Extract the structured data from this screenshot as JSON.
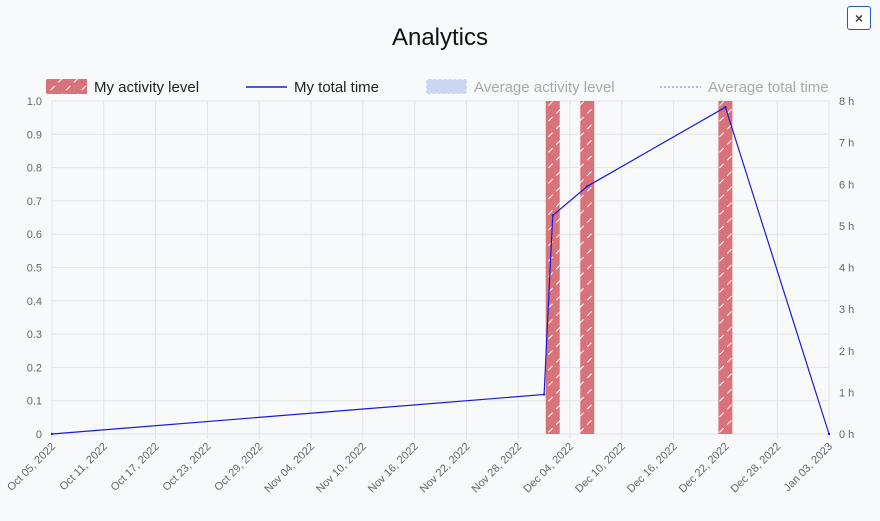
{
  "window": {
    "title": "Analytics",
    "close_icon": "close-icon",
    "close_glyph": "×"
  },
  "colors": {
    "activity_bar": "#d9737a",
    "activity_hatch": "#ffffff",
    "total_time_line": "#1a1adb",
    "average_activity": "#c9d7f2",
    "average_time": "#9aa9d8",
    "grid": "#e4e4e4",
    "legend_hidden_text": "#a9a9a9"
  },
  "legend": [
    {
      "label": "My activity level",
      "kind": "hatched-box",
      "hidden": false
    },
    {
      "label": "My total time",
      "kind": "line",
      "hidden": false
    },
    {
      "label": "Average activity level",
      "kind": "dotted-box",
      "hidden": true
    },
    {
      "label": "Average total time",
      "kind": "dotted-line",
      "hidden": true
    }
  ],
  "chart_data": {
    "type": "bar",
    "title": "Analytics",
    "x_tick_labels": [
      "Oct 05, 2022",
      "Oct 11, 2022",
      "Oct 17, 2022",
      "Oct 23, 2022",
      "Oct 29, 2022",
      "Nov 04, 2022",
      "Nov 10, 2022",
      "Nov 16, 2022",
      "Nov 22, 2022",
      "Nov 28, 2022",
      "Dec 04, 2022",
      "Dec 10, 2022",
      "Dec 16, 2022",
      "Dec 22, 2022",
      "Dec 28, 2022",
      "Jan 03, 2023"
    ],
    "xlim": [
      "2022-10-05",
      "2023-01-03"
    ],
    "y_left": {
      "ticks": [
        "0",
        "0.1",
        "0.2",
        "0.3",
        "0.4",
        "0.5",
        "0.6",
        "0.7",
        "0.8",
        "0.9",
        "1.0"
      ],
      "ylim": [
        0,
        1
      ]
    },
    "y_right": {
      "ticks": [
        "0 h",
        "1 h",
        "2 h",
        "3 h",
        "4 h",
        "5 h",
        "6 h",
        "7 h",
        "8 h"
      ],
      "ylim": [
        0,
        8
      ],
      "unit": "h"
    },
    "grid": true,
    "legend_position": "top",
    "series": [
      {
        "name": "My activity level",
        "type": "bar",
        "axis": "left",
        "points": [
          {
            "x": "2022-12-02",
            "y": 1.0
          },
          {
            "x": "2022-12-06",
            "y": 1.0
          },
          {
            "x": "2022-12-22",
            "y": 1.0
          }
        ]
      },
      {
        "name": "My total time",
        "type": "line",
        "axis": "right",
        "points": [
          {
            "x": "2022-10-05",
            "y": 0
          },
          {
            "x": "2022-12-01",
            "y": 0.95
          },
          {
            "x": "2022-12-02",
            "y": 5.25
          },
          {
            "x": "2022-12-06",
            "y": 5.95
          },
          {
            "x": "2022-12-22",
            "y": 7.85
          },
          {
            "x": "2023-01-03",
            "y": 0
          }
        ]
      },
      {
        "name": "Average activity level",
        "type": "bar",
        "axis": "left",
        "hidden": true,
        "points": []
      },
      {
        "name": "Average total time",
        "type": "line",
        "axis": "right",
        "hidden": true,
        "points": []
      }
    ]
  }
}
